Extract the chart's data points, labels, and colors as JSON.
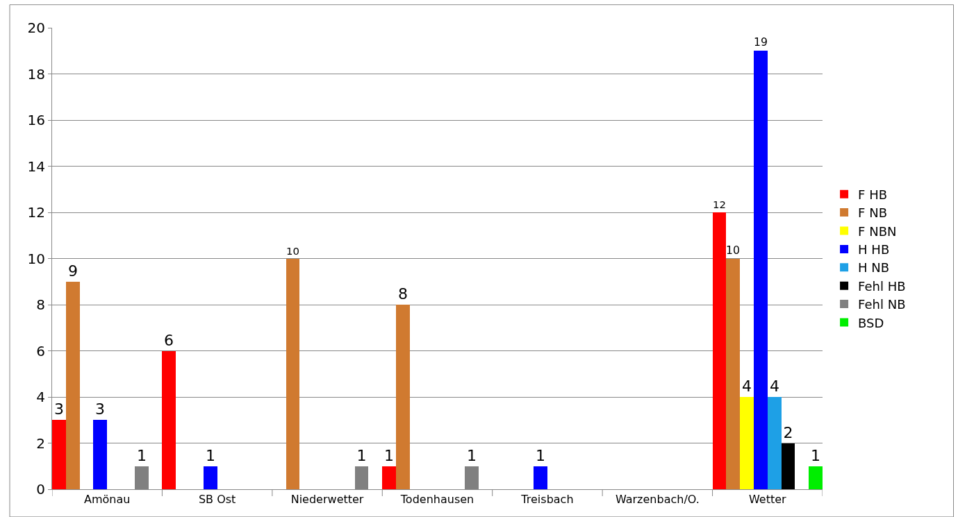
{
  "chart_data": {
    "type": "bar",
    "categories": [
      "Amönau",
      "SB Ost",
      "Niederwetter",
      "Todenhausen",
      "Treisbach",
      "Warzenbach/O.",
      "Wetter"
    ],
    "series": [
      {
        "name": "F HB",
        "color": "#ff0000",
        "values": [
          3,
          6,
          null,
          1,
          null,
          null,
          12
        ]
      },
      {
        "name": "F NB",
        "color": "#d07a30",
        "values": [
          9,
          null,
          10,
          8,
          null,
          null,
          10
        ]
      },
      {
        "name": "F NBN",
        "color": "#ffff00",
        "values": [
          null,
          null,
          null,
          null,
          null,
          null,
          4
        ]
      },
      {
        "name": "H HB",
        "color": "#0000ff",
        "values": [
          3,
          1,
          null,
          null,
          1,
          null,
          19
        ]
      },
      {
        "name": "H NB",
        "color": "#1ea0e6",
        "values": [
          null,
          null,
          null,
          null,
          null,
          null,
          4
        ]
      },
      {
        "name": "Fehl HB",
        "color": "#000000",
        "values": [
          null,
          null,
          null,
          null,
          null,
          null,
          2
        ]
      },
      {
        "name": "Fehl NB",
        "color": "#808080",
        "values": [
          1,
          null,
          1,
          1,
          null,
          null,
          null
        ]
      },
      {
        "name": "BSD",
        "color": "#00ee00",
        "values": [
          null,
          null,
          null,
          null,
          null,
          null,
          1
        ]
      }
    ],
    "ylim": [
      0,
      20
    ],
    "yticks": [
      0,
      2,
      4,
      6,
      8,
      10,
      12,
      14,
      16,
      18,
      20
    ],
    "grid": "y",
    "legend": "right",
    "data_labels": true
  }
}
